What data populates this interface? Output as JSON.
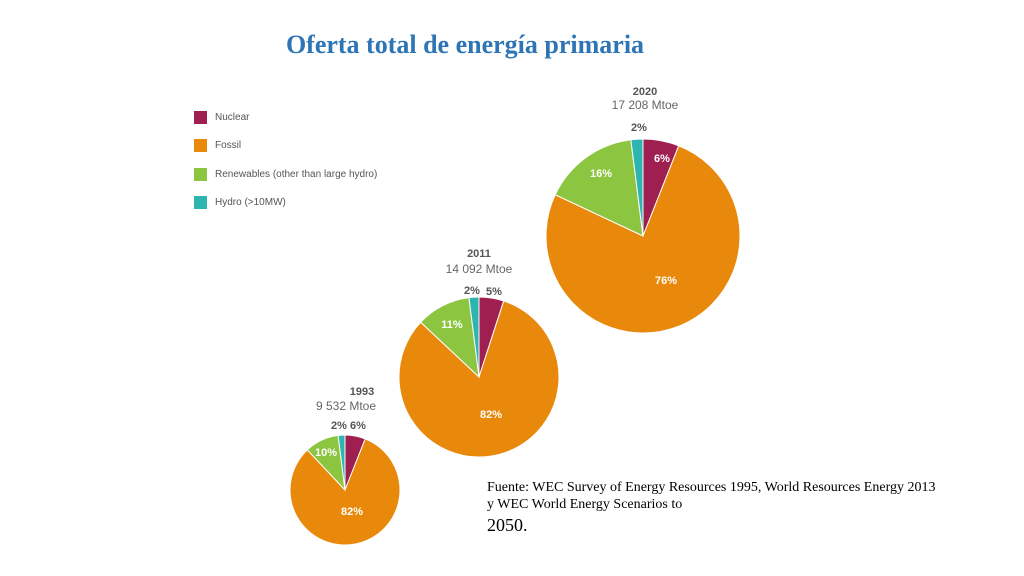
{
  "title": "Oferta total de energía primaria",
  "source": {
    "line1": "Fuente: WEC Survey of Energy Resources 1995, World Resources Energy 2013",
    "line2": "y WEC World Energy Scenarios to",
    "line3": "2050."
  },
  "legend": [
    {
      "label": "Nuclear",
      "color": "#9e1f50"
    },
    {
      "label": "Fossil",
      "color": "#e8890c"
    },
    {
      "label": "Renewables (other than large hydro)",
      "color": "#8cc540"
    },
    {
      "label": "Hydro (>10MW)",
      "color": "#2fb5b0"
    }
  ],
  "chart_data": [
    {
      "type": "pie",
      "year": "1993",
      "total": "9 532 Mtoe",
      "series": [
        "Nuclear",
        "Fossil",
        "Renewables (other than large hydro)",
        "Hydro (>10MW)"
      ],
      "values": [
        6,
        82,
        10,
        2
      ],
      "labels": [
        "6%",
        "82%",
        "10%",
        "2%"
      ]
    },
    {
      "type": "pie",
      "year": "2011",
      "total": "14 092 Mtoe",
      "series": [
        "Nuclear",
        "Fossil",
        "Renewables (other than large hydro)",
        "Hydro (>10MW)"
      ],
      "values": [
        5,
        82,
        11,
        2
      ],
      "labels": [
        "5%",
        "82%",
        "11%",
        "2%"
      ]
    },
    {
      "type": "pie",
      "year": "2020",
      "total": "17 208 Mtoe",
      "series": [
        "Nuclear",
        "Fossil",
        "Renewables (other than large hydro)",
        "Hydro (>10MW)"
      ],
      "values": [
        6,
        76,
        16,
        2
      ],
      "labels": [
        "6%",
        "76%",
        "16%",
        "2%"
      ]
    }
  ]
}
